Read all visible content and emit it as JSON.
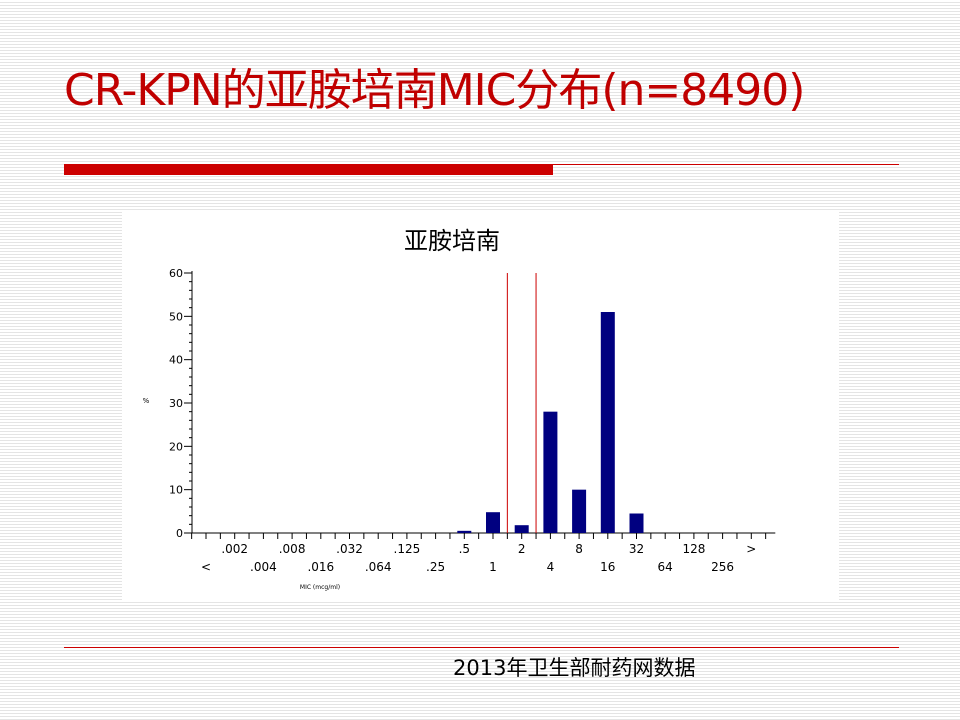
{
  "slide": {
    "title": "CR-KPN的亚胺培南MIC分布(n=8490)",
    "source_note": "2013年卫生部耐药网数据",
    "accent_color": "#cc0000"
  },
  "chart_data": {
    "type": "bar",
    "title": "亚胺培南",
    "xlabel": "MIC (mcg/ml)",
    "ylabel": "%",
    "ylim": [
      0,
      60
    ],
    "yticks": [
      0,
      10,
      20,
      30,
      40,
      50,
      60
    ],
    "grid": false,
    "legend": "none",
    "bar_color": "#000080",
    "breakpoint_color": "#cc0000",
    "categories": [
      "<",
      ".002",
      ".004",
      ".008",
      ".016",
      ".032",
      ".064",
      ".125",
      ".25",
      ".5",
      "1",
      "2",
      "4",
      "8",
      "16",
      "32",
      "64",
      "128",
      "256",
      ">"
    ],
    "values": [
      0,
      0,
      0,
      0,
      0,
      0,
      0,
      0,
      0,
      0.5,
      4.8,
      1.8,
      28,
      10,
      51,
      4.5,
      0,
      0,
      0,
      0
    ],
    "breakpoints": [
      1,
      2
    ]
  }
}
